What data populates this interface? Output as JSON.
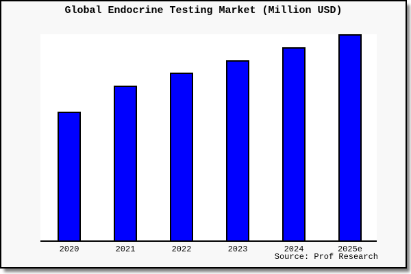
{
  "header": {
    "title": "Global Endocrine Testing Market (Million USD)"
  },
  "source": {
    "label": "Source: Prof Research"
  },
  "colors": {
    "bar_fill": "#0000ff",
    "bar_edge": "#000000",
    "card_background": "#f8f8f8",
    "plot_background": "#ffffff",
    "axis": "#000000",
    "frame_border": "#000000"
  },
  "chart_data": {
    "type": "bar",
    "title": "Global Endocrine Testing Market (Million USD)",
    "categories": [
      "2020",
      "2021",
      "2022",
      "2023",
      "2024",
      "2025e"
    ],
    "values": [
      50,
      60,
      65,
      70,
      75,
      80
    ],
    "xlabel": "",
    "ylabel": "",
    "ylim": [
      0,
      80
    ],
    "yaxis_tick_labels_visible": false,
    "grid": false,
    "legend": false,
    "bar_color": "#0000ff",
    "bar_edge_color": "#000000",
    "values_note": "No y-axis tick labels are shown in the chart; values are relative estimates read from bar pixel heights, scaled so the tallest (2025e) bar, which touches the plot top, equals 80."
  }
}
